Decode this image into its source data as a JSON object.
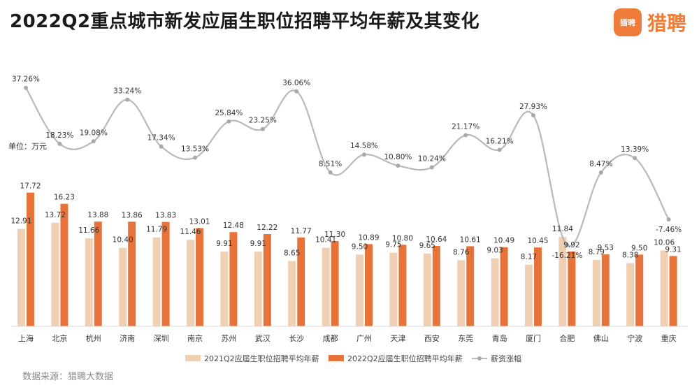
{
  "title": "2022Q2重点城市新发应届生职位招聘平均年薪及其变化",
  "brand": {
    "name": "猎聘",
    "icon": "liepin-logo-icon"
  },
  "unit_label": "单位：万元",
  "source": "数据来源：猎聘大数据",
  "colors": {
    "bar2021": "#f1cfb3",
    "bar2022": "#e8733a",
    "line": "#b9b9b9",
    "marker": "#a9a9a9"
  },
  "chart_data": {
    "type": "bar",
    "categories": [
      "上海",
      "北京",
      "杭州",
      "济南",
      "深圳",
      "南京",
      "苏州",
      "武汉",
      "长沙",
      "成都",
      "广州",
      "天津",
      "西安",
      "东莞",
      "青岛",
      "厦门",
      "合肥",
      "佛山",
      "宁波",
      "重庆"
    ],
    "series": [
      {
        "name": "2021Q2应届生职位招聘平均年薪",
        "type": "bar",
        "values": [
          12.91,
          13.72,
          11.66,
          10.4,
          11.79,
          11.46,
          9.91,
          9.91,
          8.65,
          10.41,
          9.5,
          9.75,
          9.65,
          8.76,
          9.03,
          8.17,
          11.84,
          8.79,
          8.38,
          10.06
        ]
      },
      {
        "name": "2022Q2应届生职位招聘平均年薪",
        "type": "bar",
        "values": [
          17.72,
          16.23,
          13.88,
          13.86,
          13.83,
          13.01,
          12.48,
          12.22,
          11.77,
          11.3,
          10.89,
          10.8,
          10.64,
          10.61,
          10.49,
          10.45,
          9.92,
          9.53,
          9.5,
          9.31
        ]
      },
      {
        "name": "薪资涨幅",
        "type": "line",
        "unit": "%",
        "values": [
          37.26,
          18.23,
          19.08,
          33.24,
          17.34,
          13.53,
          25.84,
          23.25,
          36.06,
          8.51,
          14.58,
          10.8,
          10.24,
          21.17,
          16.21,
          27.93,
          -16.21,
          8.47,
          13.39,
          -7.46
        ]
      }
    ],
    "grid": false,
    "legend": "bottom-center"
  }
}
